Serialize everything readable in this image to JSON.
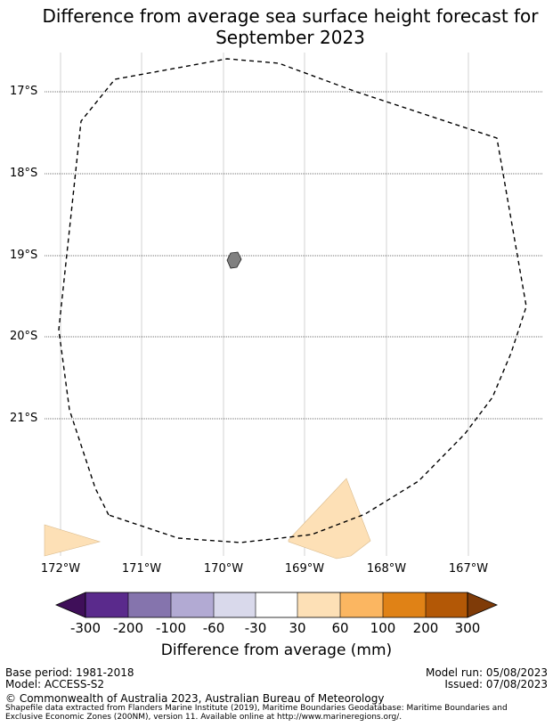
{
  "title_line1": "Difference from average sea surface height forecast for",
  "title_line2": "September 2023",
  "latitudes": [
    "17°S",
    "18°S",
    "19°S",
    "20°S",
    "21°S"
  ],
  "longitudes": [
    "172°W",
    "171°W",
    "170°W",
    "169°W",
    "168°W",
    "167°W"
  ],
  "map_features": {
    "eez_boundary": "dashed",
    "island_color": "#808080",
    "anomaly_patches": [
      {
        "class": "30 to 60",
        "color": "#fde0b6"
      },
      {
        "class": "30 to 60",
        "color": "#fde0b6"
      }
    ]
  },
  "colorbar": {
    "ticks": [
      "-300",
      "-200",
      "-100",
      "-60",
      "-30",
      "30",
      "60",
      "100",
      "200",
      "300"
    ],
    "colors": [
      "#3f0f59",
      "#5a2a8c",
      "#8574ad",
      "#b2aad3",
      "#d9d9eb",
      "#ffffff",
      "#fde0b6",
      "#fbb661",
      "#e08216",
      "#b35806",
      "#7f3b08"
    ],
    "label": "Difference from average (mm)"
  },
  "footer": {
    "base_period": "Base period: 1981-2018",
    "model": "Model: ACCESS-S2",
    "model_run": "Model run: 05/08/2023",
    "issued": "Issued: 07/08/2023",
    "copyright": "© Commonwealth of Australia 2023, Australian Bureau of Meteorology",
    "shapefile_line1": "Shapefile data extracted from Flanders Marine Institute (2019), Maritime Boundaries Geodatabase: Maritime Boundaries and",
    "shapefile_line2": "Exclusive Economic Zones (200NM), version 11. Available online at http://www.marineregions.org/."
  }
}
